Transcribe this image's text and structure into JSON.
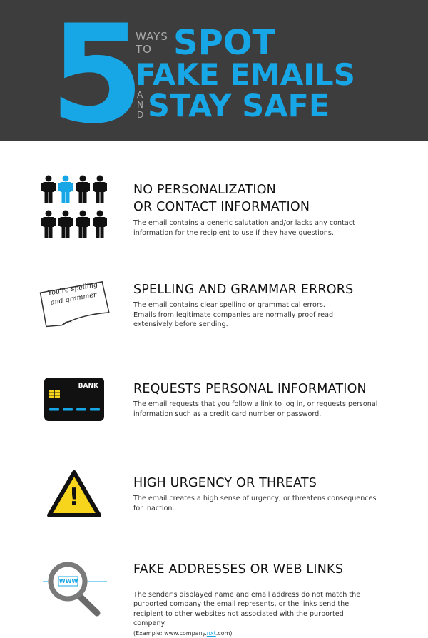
{
  "header": {
    "number": "5",
    "ways": "WAYS",
    "to": "TO",
    "line1": "SPOT",
    "line2": "FAKE EMAILS",
    "and_letters": [
      "A",
      "N",
      "D"
    ],
    "line3": "STAY SAFE"
  },
  "items": [
    {
      "icon": "people-icon",
      "title_line1": "NO PERSONALIZATION",
      "title_line2": "OR CONTACT INFORMATION",
      "desc": "The email contains a generic salutation and/or lacks any contact\ninformation for the recipient to use if they have questions."
    },
    {
      "icon": "note-icon",
      "note_text_1": "You're spelling",
      "note_text_2": "and grammer",
      "title": "SPELLING AND GRAMMAR ERRORS",
      "desc": "The email contains clear spelling or grammatical errors.\nEmails from legitimate companies are normally proof read\nextensively before sending."
    },
    {
      "icon": "credit-card-icon",
      "card_label": "BANK",
      "title": "REQUESTS PERSONAL INFORMATION",
      "desc": "The email requests that you follow a link to log in, or requests personal\ninformation such as a credit card number or password."
    },
    {
      "icon": "warning-icon",
      "warning_symbol": "!",
      "title": "HIGH URGENCY OR THREATS",
      "desc": "The email creates a high sense of urgency, or threatens consequences\nfor inaction."
    },
    {
      "icon": "magnifier-icon",
      "magnifier_label": "WWW",
      "title": "FAKE ADDRESSES OR WEB LINKS",
      "desc": "The sender's displayed name and email address do not match the\npurported company the email represents, or the links send the\nrecipient to other websites not associated with the purported\ncompany.",
      "example_prefix": "(Example: www.company.",
      "example_highlight": "nxt",
      "example_suffix": ".com)"
    }
  ],
  "colors": {
    "header_bg": "#3d3d3d",
    "accent": "#17a7e6",
    "icon_dark": "#111111",
    "warning_yellow": "#f7d51d"
  }
}
